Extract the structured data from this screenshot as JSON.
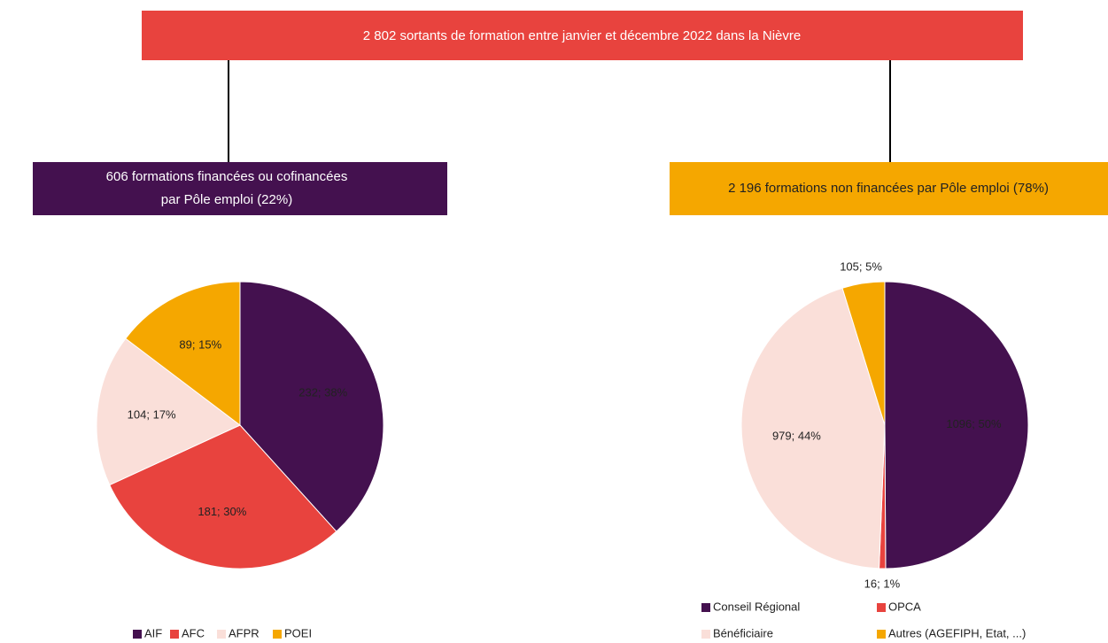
{
  "banner": "2 802 sortants de formation entre janvier et décembre 2022 dans la Nièvre",
  "left_box": {
    "lines": [
      "606 formations financées ou cofinancées",
      "par Pôle emploi (22%)"
    ]
  },
  "right_box": {
    "lines": [
      "2 196 formations non financées par Pôle emploi (78%)"
    ]
  },
  "chart_data": [
    {
      "type": "pie",
      "categories": [
        "AIF",
        "AFC",
        "AFPR",
        "POEI"
      ],
      "values": [
        232,
        181,
        104,
        89
      ],
      "value_labels": [
        "232; 38%",
        "181; 30%",
        "104; 17%",
        "89; 15%"
      ],
      "colors": [
        "#44114f",
        "#e8433e",
        "#fadfd9",
        "#f5a700"
      ]
    },
    {
      "type": "pie",
      "categories": [
        "Conseil Régional",
        "OPCA",
        "Bénéficiaire",
        "Autres (AGEFIPH, Etat, ...)"
      ],
      "values": [
        1096,
        16,
        979,
        105
      ],
      "value_labels": [
        "1096; 50%",
        "16; 1%",
        "979; 44%",
        "105; 5%"
      ],
      "colors": [
        "#44114f",
        "#e8433e",
        "#fadfd9",
        "#f5a700"
      ]
    }
  ]
}
